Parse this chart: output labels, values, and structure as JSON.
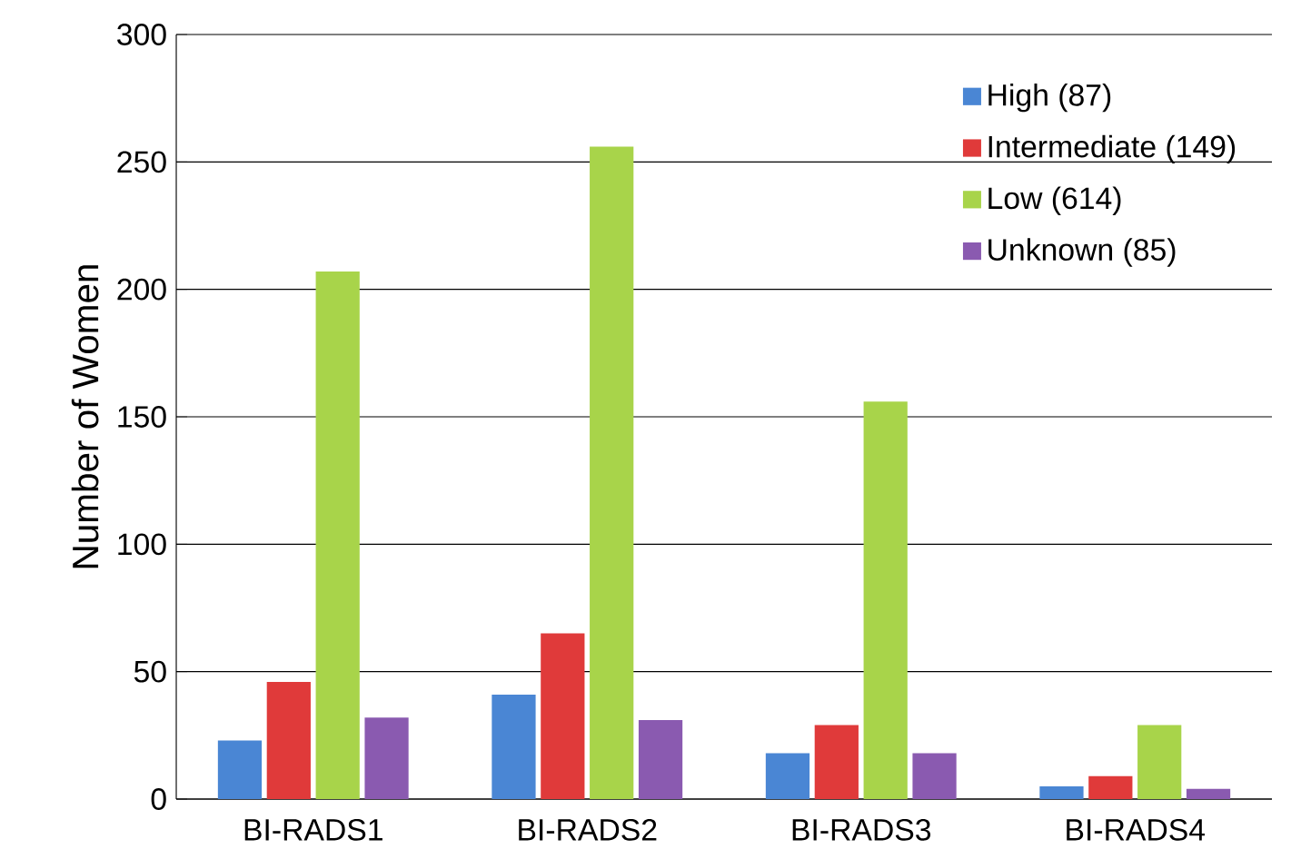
{
  "chart_data": {
    "type": "bar",
    "ylabel": "Number of Women",
    "categories": [
      "BI-RADS1",
      "BI-RADS2",
      "BI-RADS3",
      "BI-RADS4"
    ],
    "series": [
      {
        "name": "High (87)",
        "color": "#4a86d4",
        "values": [
          23,
          41,
          18,
          5
        ]
      },
      {
        "name": "Intermediate (149)",
        "color": "#e03a3a",
        "values": [
          46,
          65,
          29,
          9
        ]
      },
      {
        "name": "Low (614)",
        "color": "#a8d44a",
        "values": [
          207,
          256,
          156,
          29
        ]
      },
      {
        "name": "Unknown (85)",
        "color": "#8a5ab0",
        "values": [
          32,
          31,
          18,
          4
        ]
      }
    ],
    "ylim": [
      0,
      300
    ],
    "yticks": [
      0,
      50,
      100,
      150,
      200,
      250,
      300
    ],
    "grid": "y",
    "legend": "top right"
  }
}
